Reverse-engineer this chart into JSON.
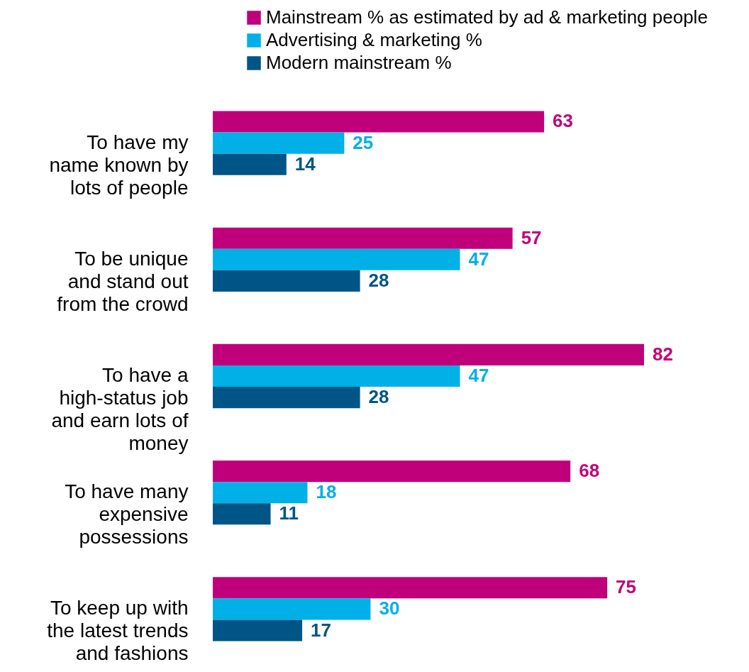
{
  "chart_data": {
    "type": "bar",
    "orientation": "horizontal",
    "categories": [
      "To have my name known by lots of people",
      "To be unique and stand out from the crowd",
      "To have a high-status job and earn lots of money",
      "To have many expensive possessions",
      "To keep up with the latest trends and fashions"
    ],
    "series": [
      {
        "name": "Mainstream % as estimated by ad & marketing people",
        "color": "#c0007a",
        "values": [
          63,
          57,
          82,
          68,
          75
        ]
      },
      {
        "name": "Advertising & marketing %",
        "color": "#00b0e6",
        "values": [
          25,
          47,
          47,
          18,
          30
        ]
      },
      {
        "name": "Modern mainstream %",
        "color": "#005587",
        "values": [
          14,
          28,
          28,
          11,
          17
        ]
      }
    ],
    "data_labels": true,
    "legend": "top",
    "tick_labels": "y"
  }
}
